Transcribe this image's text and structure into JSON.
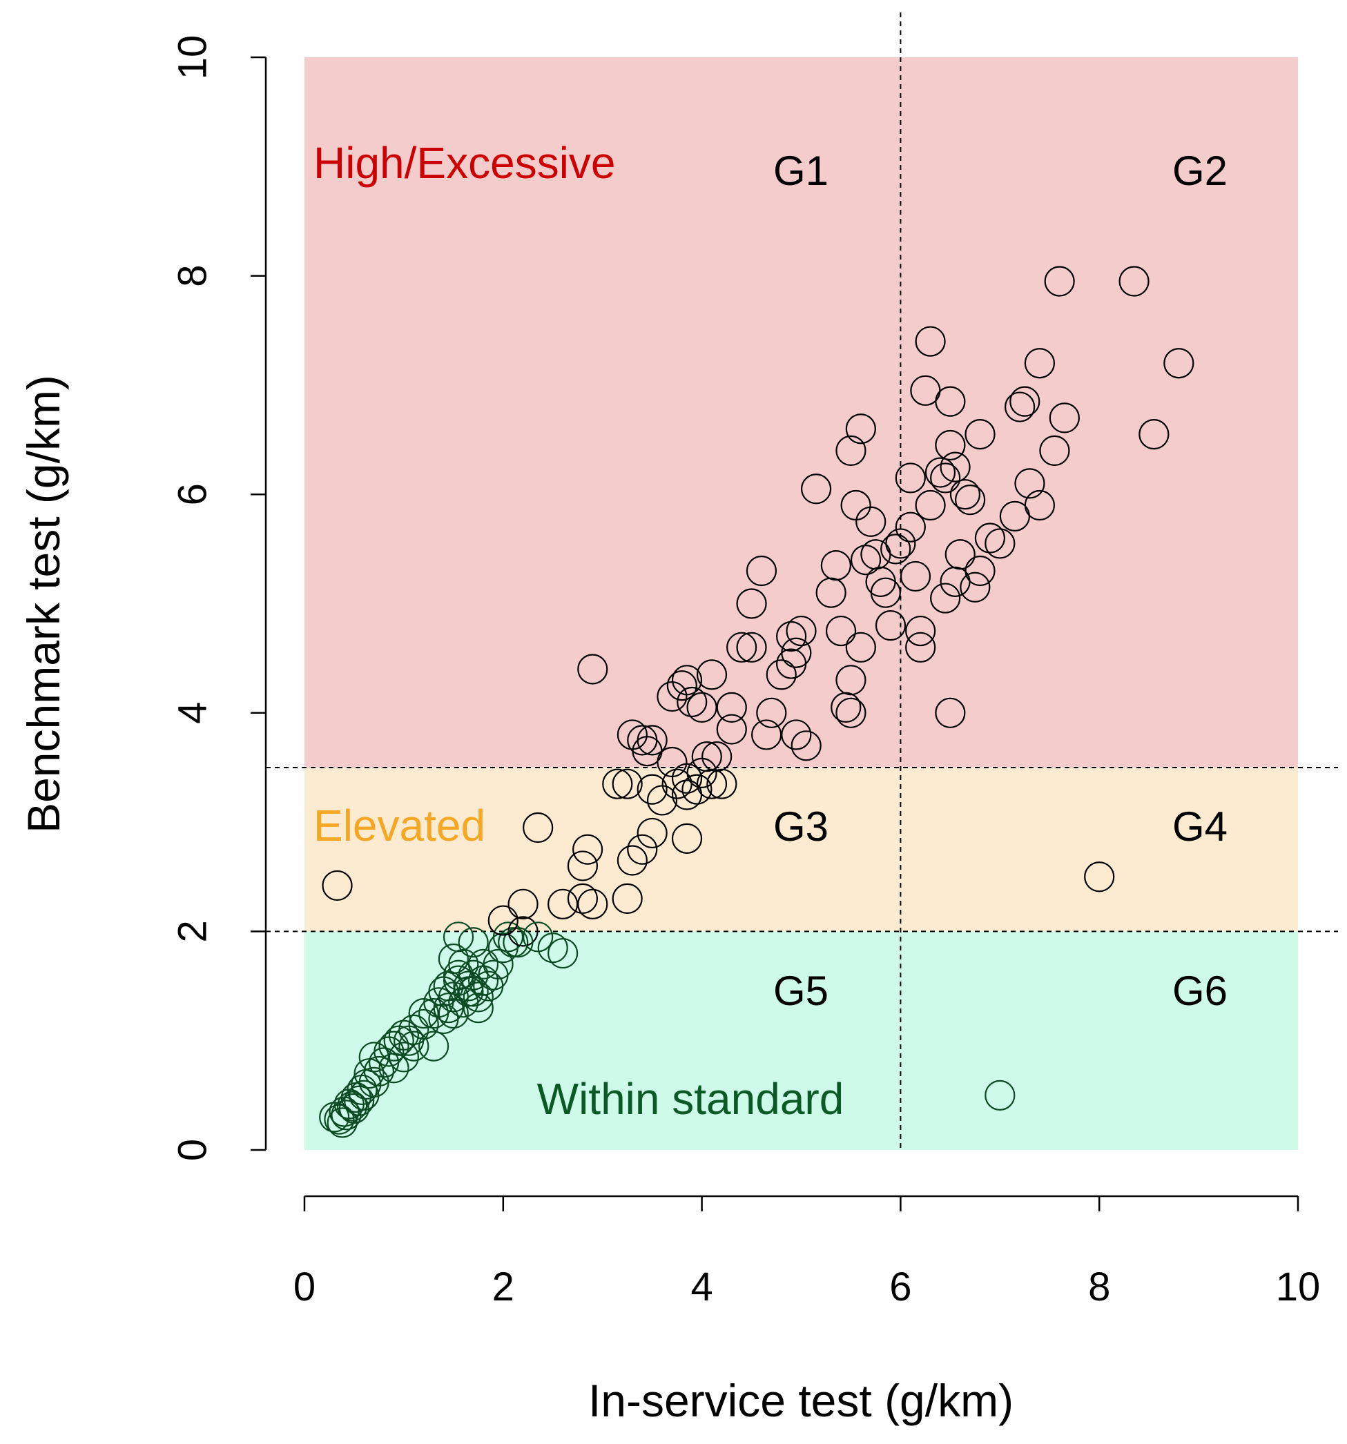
{
  "chart_data": {
    "type": "scatter",
    "xlabel": "In-service test (g/km)",
    "ylabel": "Benchmark test (g/km)",
    "xlim": [
      0,
      10
    ],
    "ylim": [
      0,
      10
    ],
    "x_ticks": [
      "0",
      "2",
      "4",
      "6",
      "8",
      "10"
    ],
    "y_ticks": [
      "0",
      "2",
      "4",
      "6",
      "8",
      "10"
    ],
    "grid": false,
    "regions": [
      {
        "name": "High/Excessive",
        "ymin": 3.5,
        "ymax": 10,
        "fill": "#f4cccc",
        "label_color": "#cc0000"
      },
      {
        "name": "Elevated",
        "ymin": 2,
        "ymax": 3.5,
        "fill": "#fdebd1",
        "label_color": "#f5a623"
      },
      {
        "name": "Within standard",
        "ymin": 0,
        "ymax": 2,
        "fill": "#cdfae9",
        "label_color": "#0b5a26"
      }
    ],
    "thresholds": {
      "x": [
        6
      ],
      "y": [
        2,
        3.5
      ]
    },
    "groups": [
      "G1",
      "G2",
      "G3",
      "G4",
      "G5",
      "G6"
    ],
    "marker_colors": {
      "default": "#000000",
      "within_standard": "#0b4a22"
    },
    "points": [
      [
        0.3,
        0.3
      ],
      [
        0.35,
        0.28
      ],
      [
        0.4,
        0.35
      ],
      [
        0.45,
        0.42
      ],
      [
        0.5,
        0.38
      ],
      [
        0.55,
        0.45
      ],
      [
        0.6,
        0.5
      ],
      [
        0.38,
        0.25
      ],
      [
        0.42,
        0.32
      ],
      [
        0.48,
        0.4
      ],
      [
        0.52,
        0.48
      ],
      [
        0.58,
        0.55
      ],
      [
        0.62,
        0.6
      ],
      [
        0.7,
        0.62
      ],
      [
        0.75,
        0.72
      ],
      [
        0.65,
        0.7
      ],
      [
        0.7,
        0.85
      ],
      [
        0.8,
        0.8
      ],
      [
        0.85,
        0.9
      ],
      [
        0.9,
        0.95
      ],
      [
        0.95,
        1.0
      ],
      [
        1.0,
        1.05
      ],
      [
        1.05,
        1.0
      ],
      [
        0.9,
        0.75
      ],
      [
        1.0,
        0.85
      ],
      [
        1.1,
        0.95
      ],
      [
        1.1,
        1.1
      ],
      [
        1.2,
        1.15
      ],
      [
        1.3,
        1.25
      ],
      [
        1.35,
        1.35
      ],
      [
        1.4,
        1.45
      ],
      [
        1.45,
        1.5
      ],
      [
        1.5,
        1.4
      ],
      [
        1.55,
        1.6
      ],
      [
        1.6,
        1.7
      ],
      [
        1.65,
        1.5
      ],
      [
        1.7,
        1.45
      ],
      [
        1.75,
        1.3
      ],
      [
        1.8,
        1.55
      ],
      [
        1.5,
        1.25
      ],
      [
        1.6,
        1.35
      ],
      [
        1.7,
        1.6
      ],
      [
        1.4,
        1.2
      ],
      [
        1.5,
        1.75
      ],
      [
        1.55,
        1.95
      ],
      [
        1.65,
        1.45
      ],
      [
        1.7,
        1.9
      ],
      [
        1.8,
        1.7
      ],
      [
        1.85,
        1.5
      ],
      [
        1.9,
        1.6
      ],
      [
        1.95,
        1.7
      ],
      [
        2.0,
        1.85
      ],
      [
        2.05,
        1.95
      ],
      [
        2.1,
        1.9
      ],
      [
        2.2,
        2.0
      ],
      [
        2.15,
        1.9
      ],
      [
        2.35,
        1.95
      ],
      [
        2.5,
        1.85
      ],
      [
        2.6,
        1.8
      ],
      [
        1.3,
        0.95
      ],
      [
        1.2,
        1.25
      ],
      [
        1.45,
        1.3
      ],
      [
        1.55,
        1.55
      ],
      [
        1.75,
        1.4
      ],
      [
        2.0,
        2.1
      ],
      [
        2.2,
        2.25
      ],
      [
        2.6,
        2.25
      ],
      [
        2.8,
        2.3
      ],
      [
        2.9,
        2.25
      ],
      [
        3.25,
        2.3
      ],
      [
        2.8,
        2.6
      ],
      [
        2.85,
        2.75
      ],
      [
        3.3,
        2.65
      ],
      [
        3.4,
        2.75
      ],
      [
        3.5,
        2.9
      ],
      [
        3.85,
        2.85
      ],
      [
        2.35,
        2.95
      ],
      [
        0.33,
        2.42
      ],
      [
        8.0,
        2.5
      ],
      [
        7.0,
        0.5
      ],
      [
        3.15,
        3.35
      ],
      [
        3.25,
        3.35
      ],
      [
        3.5,
        3.3
      ],
      [
        3.6,
        3.2
      ],
      [
        3.75,
        3.35
      ],
      [
        3.85,
        3.25
      ],
      [
        3.95,
        3.3
      ],
      [
        4.1,
        3.35
      ],
      [
        4.2,
        3.35
      ],
      [
        4.0,
        3.45
      ],
      [
        3.45,
        3.65
      ],
      [
        3.5,
        3.75
      ],
      [
        3.7,
        3.55
      ],
      [
        3.85,
        3.4
      ],
      [
        3.3,
        3.8
      ],
      [
        3.4,
        3.75
      ],
      [
        4.05,
        3.6
      ],
      [
        4.15,
        3.6
      ],
      [
        4.3,
        3.85
      ],
      [
        4.3,
        4.05
      ],
      [
        3.7,
        4.15
      ],
      [
        3.8,
        4.25
      ],
      [
        3.85,
        4.3
      ],
      [
        3.9,
        4.1
      ],
      [
        4.0,
        4.05
      ],
      [
        4.1,
        4.35
      ],
      [
        4.4,
        4.6
      ],
      [
        4.5,
        4.6
      ],
      [
        4.5,
        5.0
      ],
      [
        4.6,
        5.3
      ],
      [
        4.65,
        3.8
      ],
      [
        4.7,
        4.0
      ],
      [
        4.8,
        4.35
      ],
      [
        4.9,
        4.45
      ],
      [
        4.95,
        4.55
      ],
      [
        5.0,
        4.75
      ],
      [
        4.9,
        4.7
      ],
      [
        4.95,
        3.8
      ],
      [
        5.05,
        3.7
      ],
      [
        2.9,
        4.4
      ],
      [
        5.15,
        6.05
      ],
      [
        5.3,
        5.1
      ],
      [
        5.35,
        5.35
      ],
      [
        5.4,
        4.75
      ],
      [
        5.5,
        4.0
      ],
      [
        5.5,
        4.3
      ],
      [
        5.45,
        4.05
      ],
      [
        5.6,
        4.6
      ],
      [
        5.65,
        5.4
      ],
      [
        5.55,
        5.9
      ],
      [
        5.5,
        6.4
      ],
      [
        5.6,
        6.6
      ],
      [
        5.7,
        5.75
      ],
      [
        5.75,
        5.45
      ],
      [
        5.8,
        5.2
      ],
      [
        5.85,
        5.1
      ],
      [
        5.9,
        4.8
      ],
      [
        5.95,
        5.5
      ],
      [
        6.0,
        5.55
      ],
      [
        6.1,
        5.7
      ],
      [
        6.15,
        5.25
      ],
      [
        6.2,
        4.75
      ],
      [
        6.2,
        4.6
      ],
      [
        6.1,
        6.15
      ],
      [
        6.3,
        5.9
      ],
      [
        6.25,
        6.95
      ],
      [
        6.3,
        7.4
      ],
      [
        6.4,
        6.2
      ],
      [
        6.45,
        6.15
      ],
      [
        6.5,
        6.85
      ],
      [
        6.5,
        6.45
      ],
      [
        6.55,
        6.25
      ],
      [
        6.6,
        5.45
      ],
      [
        6.65,
        6.0
      ],
      [
        6.7,
        5.95
      ],
      [
        6.75,
        5.15
      ],
      [
        6.8,
        5.3
      ],
      [
        6.8,
        6.55
      ],
      [
        6.9,
        5.6
      ],
      [
        7.0,
        5.55
      ],
      [
        7.15,
        5.8
      ],
      [
        7.2,
        6.8
      ],
      [
        7.25,
        6.85
      ],
      [
        7.3,
        6.1
      ],
      [
        7.4,
        5.9
      ],
      [
        7.4,
        7.2
      ],
      [
        7.55,
        6.4
      ],
      [
        7.6,
        7.95
      ],
      [
        7.65,
        6.7
      ],
      [
        8.35,
        7.95
      ],
      [
        8.55,
        6.55
      ],
      [
        8.8,
        7.2
      ],
      [
        6.5,
        4.0
      ],
      [
        6.45,
        5.05
      ],
      [
        6.55,
        5.2
      ]
    ]
  }
}
